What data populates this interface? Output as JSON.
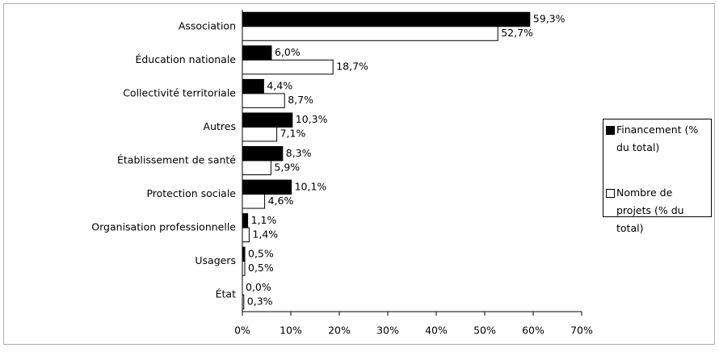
{
  "chart_data": {
    "type": "bar",
    "orientation": "horizontal",
    "categories": [
      "Association",
      "Éducation nationale",
      "Collectivité territoriale",
      "Autres",
      "Établissement de santé",
      "Protection sociale",
      "Organisation professionnelle",
      "Usagers",
      "État"
    ],
    "series": [
      {
        "name": "Financement (% du total)",
        "color": "#000000",
        "values": [
          59.3,
          6.0,
          4.4,
          10.3,
          8.3,
          10.1,
          1.1,
          0.5,
          0.0
        ],
        "value_labels": [
          "59,3%",
          "6,0%",
          "4,4%",
          "10,3%",
          "8,3%",
          "10,1%",
          "1,1%",
          "0,5%",
          "0,0%"
        ]
      },
      {
        "name": "Nombre de projets (% du total)",
        "color": "#ffffff",
        "values": [
          52.7,
          18.7,
          8.7,
          7.1,
          5.9,
          4.6,
          1.4,
          0.5,
          0.3
        ],
        "value_labels": [
          "52,7%",
          "18,7%",
          "8,7%",
          "7,1%",
          "5,9%",
          "4,6%",
          "1,4%",
          "0,5%",
          "0,3%"
        ]
      }
    ],
    "xlim": [
      0,
      70
    ],
    "xticks": [
      {
        "value": 0,
        "label": "0%"
      },
      {
        "value": 10,
        "label": "10%"
      },
      {
        "value": 20,
        "label": "20%"
      },
      {
        "value": 30,
        "label": "30%"
      },
      {
        "value": 40,
        "label": "40%"
      },
      {
        "value": 50,
        "label": "50%"
      },
      {
        "value": 60,
        "label": "60%"
      },
      {
        "value": 70,
        "label": "70%"
      }
    ],
    "legend": "right"
  }
}
